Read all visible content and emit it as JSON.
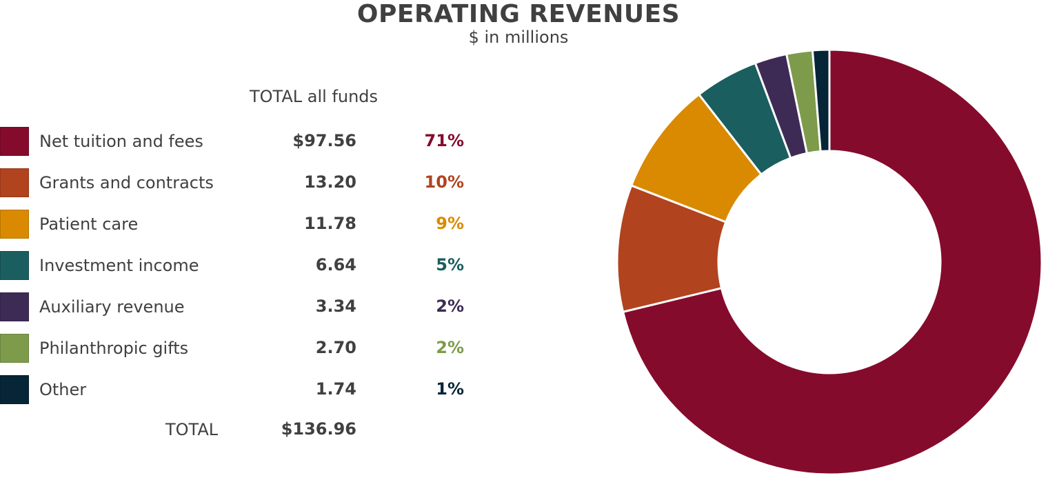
{
  "chart_data": {
    "type": "pie",
    "variant": "donut",
    "title": "OPERATING REVENUES",
    "subtitle": "$ in millions",
    "column_header": "TOTAL all funds",
    "categories": [
      "Net tuition and fees",
      "Grants and contracts",
      "Patient care",
      "Investment income",
      "Auxiliary revenue",
      "Philanthropic gifts",
      "Other"
    ],
    "values": [
      97.56,
      13.2,
      11.78,
      6.64,
      3.34,
      2.7,
      1.74
    ],
    "value_labels": [
      "$97.56",
      "13.20",
      "11.78",
      "6.64",
      "3.34",
      "2.70",
      "1.74"
    ],
    "percent_labels": [
      "71%",
      "10%",
      "9%",
      "5%",
      "2%",
      "2%",
      "1%"
    ],
    "colors": [
      "#850b2c",
      "#b1431f",
      "#d98a00",
      "#1b5e5f",
      "#3e2b55",
      "#7d9b4a",
      "#062537"
    ],
    "total_label": "TOTAL",
    "total_value": "$136.96",
    "legend": "left",
    "start": "top, clockwise"
  }
}
